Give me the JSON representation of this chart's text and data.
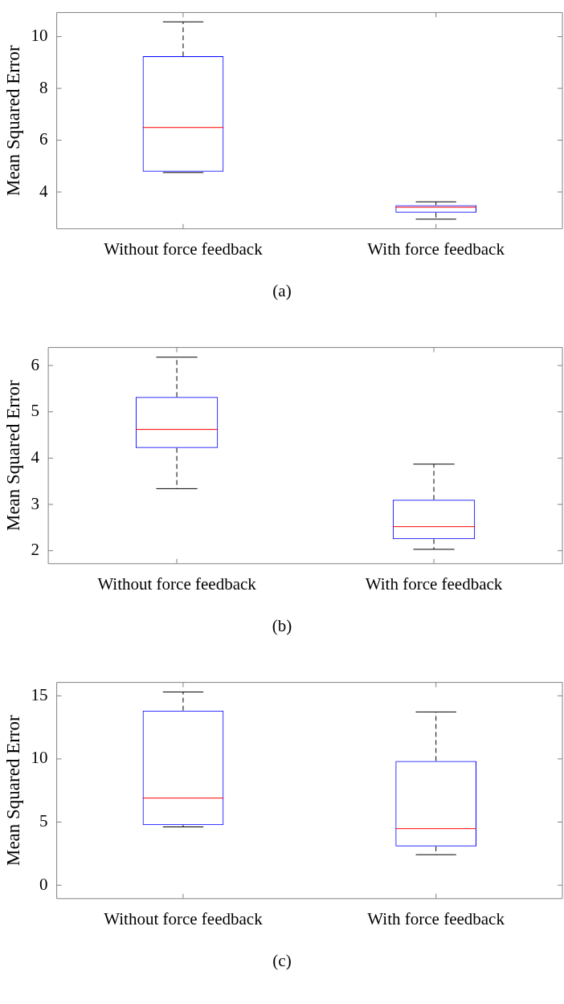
{
  "chart_data": [
    {
      "type": "box",
      "categories": [
        "Without force feedback",
        "With force feedback"
      ],
      "ylabel": "Mean Squared Error",
      "ylim": [
        2.58,
        10.93
      ],
      "yticks": [
        4,
        6,
        8,
        10
      ],
      "annotations": [
        "(a)"
      ],
      "series": [
        {
          "color": "#0000ff",
          "boxes": [
            {
              "low": 4.75,
              "q1": 4.78,
              "median": 6.49,
              "q3": 9.24,
              "high": 10.57
            },
            {
              "low": 2.95,
              "q1": 3.2,
              "median": 3.41,
              "q3": 3.49,
              "high": 3.62
            }
          ]
        }
      ]
    },
    {
      "type": "box",
      "categories": [
        "Without force feedback",
        "With force feedback"
      ],
      "ylabel": "Mean Squared Error",
      "ylim": [
        1.72,
        6.39
      ],
      "yticks": [
        2,
        3,
        4,
        5,
        6
      ],
      "annotations": [
        "(b)"
      ],
      "series": [
        {
          "color": "#0000ff",
          "boxes": [
            {
              "low": 3.34,
              "q1": 4.22,
              "median": 4.62,
              "q3": 5.32,
              "high": 6.18
            },
            {
              "low": 2.03,
              "q1": 2.25,
              "median": 2.52,
              "q3": 3.1,
              "high": 3.87
            }
          ]
        }
      ]
    },
    {
      "type": "box",
      "categories": [
        "Without force feedback",
        "With force feedback"
      ],
      "ylabel": "Mean Squared Error",
      "ylim": [
        -1.06,
        16.06
      ],
      "yticks": [
        0,
        5,
        10,
        15
      ],
      "annotations": [
        "(c)"
      ],
      "series": [
        {
          "color": "#0000ff",
          "boxes": [
            {
              "low": 4.62,
              "q1": 4.76,
              "median": 6.9,
              "q3": 13.83,
              "high": 15.3
            },
            {
              "low": 2.42,
              "q1": 3.07,
              "median": 4.48,
              "q3": 9.84,
              "high": 13.72
            }
          ]
        }
      ]
    }
  ]
}
